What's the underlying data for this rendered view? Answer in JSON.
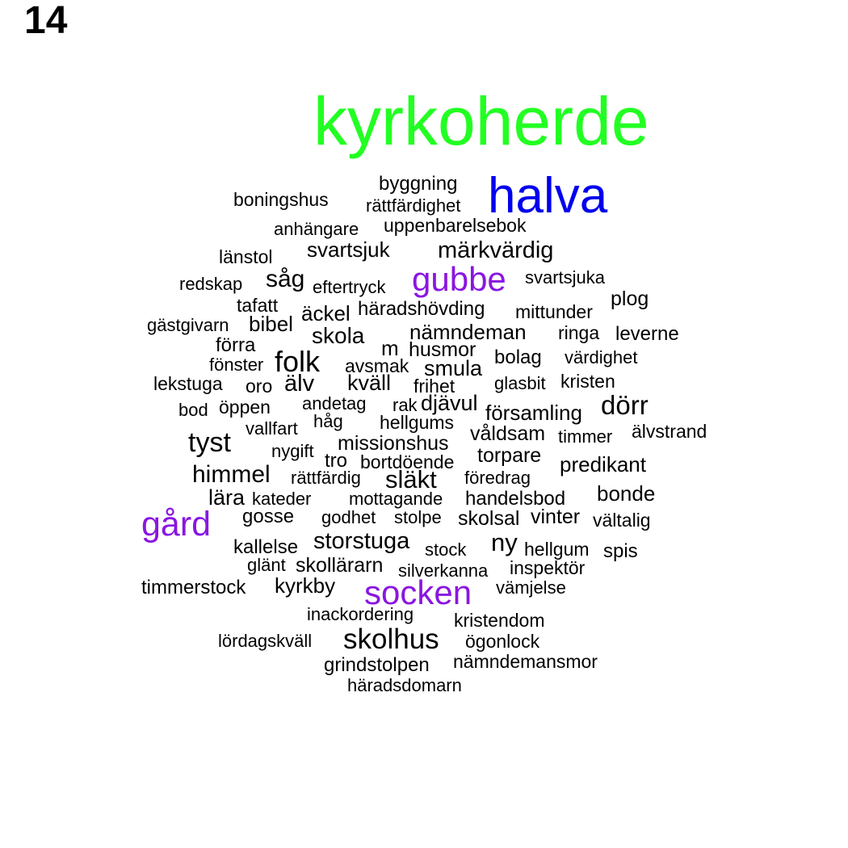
{
  "panel_label": "14",
  "colors": {
    "green": "#22ff22",
    "blue": "#0000ee",
    "purple": "#8a16e0",
    "black": "#000000"
  },
  "words": [
    {
      "text": "kyrkoherde",
      "color": "green"
    },
    {
      "text": "halva",
      "color": "blue"
    },
    {
      "text": "byggning",
      "color": "black"
    },
    {
      "text": "rättfärdighet",
      "color": "black"
    },
    {
      "text": "boningshus",
      "color": "black"
    },
    {
      "text": "anhängare",
      "color": "black"
    },
    {
      "text": "uppenbarelsebok",
      "color": "black"
    },
    {
      "text": "svartsjuk",
      "color": "black"
    },
    {
      "text": "märkvärdig",
      "color": "black"
    },
    {
      "text": "länstol",
      "color": "black"
    },
    {
      "text": "såg",
      "color": "black"
    },
    {
      "text": "gubbe",
      "color": "purple"
    },
    {
      "text": "svartsjuka",
      "color": "black"
    },
    {
      "text": "redskap",
      "color": "black"
    },
    {
      "text": "eftertryck",
      "color": "black"
    },
    {
      "text": "tafatt",
      "color": "black"
    },
    {
      "text": "plog",
      "color": "black"
    },
    {
      "text": "äckel",
      "color": "black"
    },
    {
      "text": "häradshövding",
      "color": "black"
    },
    {
      "text": "mittunder",
      "color": "black"
    },
    {
      "text": "gästgivarn",
      "color": "black"
    },
    {
      "text": "bibel",
      "color": "black"
    },
    {
      "text": "skola",
      "color": "black"
    },
    {
      "text": "nämndeman",
      "color": "black"
    },
    {
      "text": "ringa",
      "color": "black"
    },
    {
      "text": "leverne",
      "color": "black"
    },
    {
      "text": "förra",
      "color": "black"
    },
    {
      "text": "m",
      "color": "black"
    },
    {
      "text": "husmor",
      "color": "black"
    },
    {
      "text": "bolag",
      "color": "black"
    },
    {
      "text": "värdighet",
      "color": "black"
    },
    {
      "text": "fönster",
      "color": "black"
    },
    {
      "text": "folk",
      "color": "black"
    },
    {
      "text": "avsmak",
      "color": "black"
    },
    {
      "text": "smula",
      "color": "black"
    },
    {
      "text": "lekstuga",
      "color": "black"
    },
    {
      "text": "oro",
      "color": "black"
    },
    {
      "text": "älv",
      "color": "black"
    },
    {
      "text": "kväll",
      "color": "black"
    },
    {
      "text": "frihet",
      "color": "black"
    },
    {
      "text": "glasbit",
      "color": "black"
    },
    {
      "text": "kristen",
      "color": "black"
    },
    {
      "text": "andetag",
      "color": "black"
    },
    {
      "text": "rak",
      "color": "black"
    },
    {
      "text": "djävul",
      "color": "black"
    },
    {
      "text": "dörr",
      "color": "black"
    },
    {
      "text": "bod",
      "color": "black"
    },
    {
      "text": "öppen",
      "color": "black"
    },
    {
      "text": "församling",
      "color": "black"
    },
    {
      "text": "håg",
      "color": "black"
    },
    {
      "text": "vallfart",
      "color": "black"
    },
    {
      "text": "hellgums",
      "color": "black"
    },
    {
      "text": "våldsam",
      "color": "black"
    },
    {
      "text": "timmer",
      "color": "black"
    },
    {
      "text": "älvstrand",
      "color": "black"
    },
    {
      "text": "tyst",
      "color": "black"
    },
    {
      "text": "missionshus",
      "color": "black"
    },
    {
      "text": "nygift",
      "color": "black"
    },
    {
      "text": "tro",
      "color": "black"
    },
    {
      "text": "bortdöende",
      "color": "black"
    },
    {
      "text": "torpare",
      "color": "black"
    },
    {
      "text": "predikant",
      "color": "black"
    },
    {
      "text": "himmel",
      "color": "black"
    },
    {
      "text": "rättfärdig",
      "color": "black"
    },
    {
      "text": "släkt",
      "color": "black"
    },
    {
      "text": "föredrag",
      "color": "black"
    },
    {
      "text": "lära",
      "color": "black"
    },
    {
      "text": "kateder",
      "color": "black"
    },
    {
      "text": "mottagande",
      "color": "black"
    },
    {
      "text": "handelsbod",
      "color": "black"
    },
    {
      "text": "bonde",
      "color": "black"
    },
    {
      "text": "gård",
      "color": "purple"
    },
    {
      "text": "gosse",
      "color": "black"
    },
    {
      "text": "godhet",
      "color": "black"
    },
    {
      "text": "stolpe",
      "color": "black"
    },
    {
      "text": "skolsal",
      "color": "black"
    },
    {
      "text": "vinter",
      "color": "black"
    },
    {
      "text": "vältalig",
      "color": "black"
    },
    {
      "text": "kallelse",
      "color": "black"
    },
    {
      "text": "storstuga",
      "color": "black"
    },
    {
      "text": "stock",
      "color": "black"
    },
    {
      "text": "ny",
      "color": "black"
    },
    {
      "text": "hellgum",
      "color": "black"
    },
    {
      "text": "spis",
      "color": "black"
    },
    {
      "text": "glänt",
      "color": "black"
    },
    {
      "text": "skollärarn",
      "color": "black"
    },
    {
      "text": "silverkanna",
      "color": "black"
    },
    {
      "text": "inspektör",
      "color": "black"
    },
    {
      "text": "timmerstock",
      "color": "black"
    },
    {
      "text": "kyrkby",
      "color": "black"
    },
    {
      "text": "socken",
      "color": "purple"
    },
    {
      "text": "vämjelse",
      "color": "black"
    },
    {
      "text": "inackordering",
      "color": "black"
    },
    {
      "text": "kristendom",
      "color": "black"
    },
    {
      "text": "lördagskväll",
      "color": "black"
    },
    {
      "text": "skolhus",
      "color": "black"
    },
    {
      "text": "ögonlock",
      "color": "black"
    },
    {
      "text": "grindstolpen",
      "color": "black"
    },
    {
      "text": "nämndemansmor",
      "color": "black"
    },
    {
      "text": "häradsdomarn",
      "color": "black"
    }
  ]
}
